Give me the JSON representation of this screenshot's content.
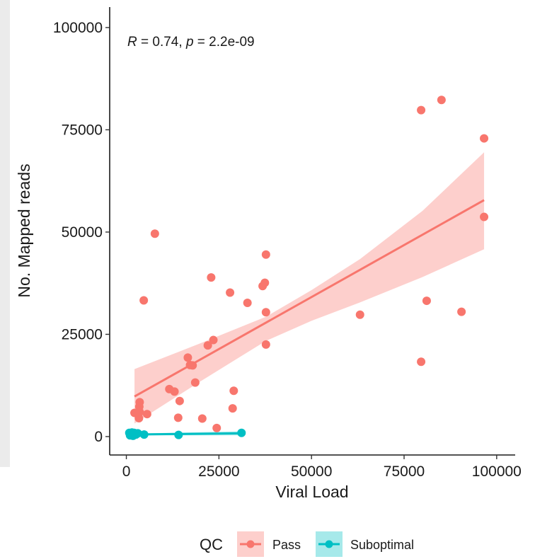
{
  "chart_data": {
    "type": "scatter",
    "xlabel": "Viral Load",
    "ylabel": "No. Mapped reads",
    "xlim": [
      -4500,
      105000
    ],
    "ylim": [
      -4500,
      105000
    ],
    "x_ticks": [
      0,
      25000,
      50000,
      75000,
      100000
    ],
    "x_tick_labels": [
      "0",
      "25000",
      "50000",
      "75000",
      "100000"
    ],
    "y_ticks": [
      0,
      25000,
      50000,
      75000,
      100000
    ],
    "y_tick_labels": [
      "0",
      "25000",
      "50000",
      "75000",
      "100000"
    ],
    "annotation": {
      "r_symbol": "R",
      "r_text": " = 0.74, ",
      "p_symbol": "p",
      "p_text": " = 2.2e-09"
    },
    "grid": false,
    "legend": {
      "title": "QC",
      "position": "bottom",
      "entries": [
        "Pass",
        "Suboptimal"
      ]
    },
    "series": [
      {
        "name": "Pass",
        "color": "#F8766D",
        "points": [
          [
            2200,
            5800
          ],
          [
            3200,
            5400
          ],
          [
            3400,
            4500
          ],
          [
            3600,
            6000
          ],
          [
            3500,
            7300
          ],
          [
            3600,
            8400
          ],
          [
            4700,
            33300
          ],
          [
            5600,
            5500
          ],
          [
            7700,
            49600
          ],
          [
            11600,
            11600
          ],
          [
            13000,
            11000
          ],
          [
            14000,
            4600
          ],
          [
            14400,
            8700
          ],
          [
            16600,
            19300
          ],
          [
            17200,
            17500
          ],
          [
            17900,
            17400
          ],
          [
            18600,
            13200
          ],
          [
            20500,
            4400
          ],
          [
            22000,
            22300
          ],
          [
            22900,
            38900
          ],
          [
            23500,
            23600
          ],
          [
            24400,
            2100
          ],
          [
            28000,
            35200
          ],
          [
            28700,
            6900
          ],
          [
            29000,
            11200
          ],
          [
            32700,
            32700
          ],
          [
            36800,
            36800
          ],
          [
            37400,
            37600
          ],
          [
            37700,
            44500
          ],
          [
            37700,
            30400
          ],
          [
            37700,
            22500
          ],
          [
            63100,
            29800
          ],
          [
            79600,
            79800
          ],
          [
            79600,
            18300
          ],
          [
            81100,
            33200
          ],
          [
            85100,
            82300
          ],
          [
            90500,
            30500
          ],
          [
            96600,
            72900
          ],
          [
            96600,
            53700
          ]
        ],
        "fit": {
          "x": [
            2200,
            96600
          ],
          "y": [
            9800,
            57800
          ]
        },
        "ci_upper": [
          [
            2200,
            16500
          ],
          [
            20000,
            22800
          ],
          [
            37700,
            29300
          ],
          [
            50000,
            35800
          ],
          [
            63100,
            43400
          ],
          [
            80000,
            55200
          ],
          [
            96600,
            69500
          ]
        ],
        "ci_lower": [
          [
            2200,
            3200
          ],
          [
            20000,
            13500
          ],
          [
            37700,
            23400
          ],
          [
            50000,
            28300
          ],
          [
            63100,
            32800
          ],
          [
            80000,
            39000
          ],
          [
            96600,
            45800
          ]
        ]
      },
      {
        "name": "Suboptimal",
        "color": "#00BFC4",
        "points": [
          [
            800,
            900
          ],
          [
            1000,
            300
          ],
          [
            1200,
            600
          ],
          [
            1500,
            1000
          ],
          [
            1800,
            200
          ],
          [
            2100,
            900
          ],
          [
            2600,
            500
          ],
          [
            3100,
            800
          ],
          [
            4800,
            500
          ],
          [
            14100,
            400
          ],
          [
            31100,
            900
          ]
        ],
        "fit": {
          "x": [
            800,
            31100
          ],
          "y": [
            500,
            800
          ]
        },
        "ci_upper": [
          [
            800,
            700
          ],
          [
            31100,
            1300
          ]
        ],
        "ci_lower": [
          [
            800,
            300
          ],
          [
            31100,
            300
          ]
        ]
      }
    ]
  }
}
